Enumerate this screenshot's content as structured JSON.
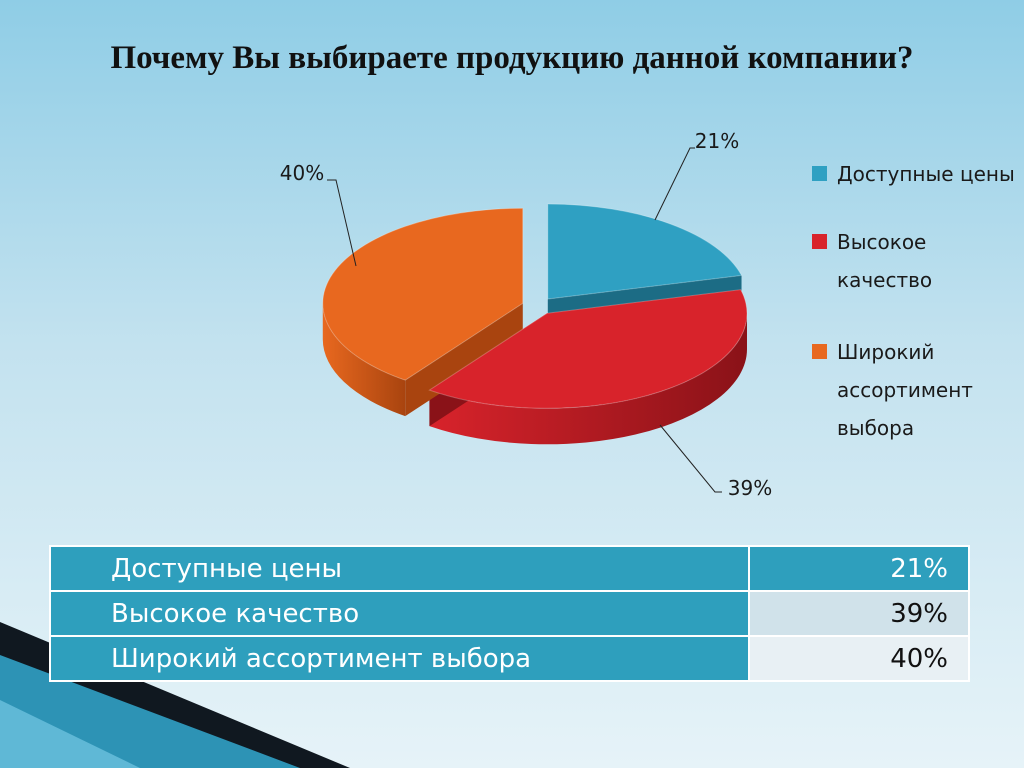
{
  "title": "Почему Вы выбираете продукцию данной компании?",
  "chart_data": {
    "type": "pie",
    "labels": [
      "Доступные цены",
      "Высокое качество",
      "Широкий ассортимент выбора"
    ],
    "values": [
      21,
      39,
      40
    ],
    "data_labels": [
      "21%",
      "39%",
      "40%"
    ],
    "colors": [
      "#2fa0c2",
      "#d8232b",
      "#e8681f"
    ],
    "legend_position": "right",
    "style": "3d-exploded"
  },
  "legend": [
    {
      "label": "Доступные цены",
      "color": "#2fa0c2"
    },
    {
      "label": "Высокое качество",
      "color": "#d8232b"
    },
    {
      "label": "Широкий ассортимент выбора",
      "color": "#e8681f"
    }
  ],
  "table": [
    {
      "label": "Доступные цены",
      "value": "21%"
    },
    {
      "label": "Высокое качество",
      "value": "39%"
    },
    {
      "label": "Широкий ассортимент выбора",
      "value": "40%"
    }
  ]
}
